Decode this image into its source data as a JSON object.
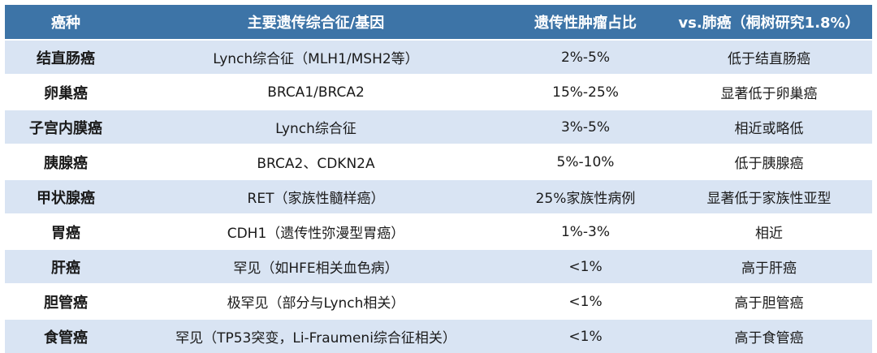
{
  "headers": [
    "癌种",
    "主要遗传综合征/基因",
    "遗传性肿瘤占比",
    "vs.肺癌（桐树研究1.8%）"
  ],
  "rows": [
    {
      "cancer": "结直肠癌",
      "syndrome": "Lynch综合征（MLH1/MSH2等）",
      "ratio": "2%-5%",
      "compare": "低于结直肠癌"
    },
    {
      "cancer": "卵巢癌",
      "syndrome": "BRCA1/BRCA2",
      "ratio": "15%-25%",
      "compare": "显著低于卵巢癌"
    },
    {
      "cancer": "子宫内膜癌",
      "syndrome": "Lynch综合征",
      "ratio": "3%-5%",
      "compare": "相近或略低"
    },
    {
      "cancer": "胰腺癌",
      "syndrome": "BRCA2、CDKN2A",
      "ratio": "5%-10%",
      "compare": "低于胰腺癌"
    },
    {
      "cancer": "甲状腺癌",
      "syndrome": "RET（家族性髓样癌）",
      "ratio": "25%家族性病例",
      "compare": "显著低于家族性亚型"
    },
    {
      "cancer": "胃癌",
      "syndrome": "CDH1（遗传性弥漫型胃癌）",
      "ratio": "1%-3%",
      "compare": "相近"
    },
    {
      "cancer": "肝癌",
      "syndrome": "罕见（如HFE相关血色病）",
      "ratio": "<1%",
      "compare": "高于肝癌"
    },
    {
      "cancer": "胆管癌",
      "syndrome": "极罕见（部分与Lynch相关）",
      "ratio": "<1%",
      "compare": "高于胆管癌"
    },
    {
      "cancer": "食管癌",
      "syndrome": "罕见（TP53突变，Li-Fraumeni综合征相关）",
      "ratio": "<1%",
      "compare": "高于食管癌"
    }
  ]
}
